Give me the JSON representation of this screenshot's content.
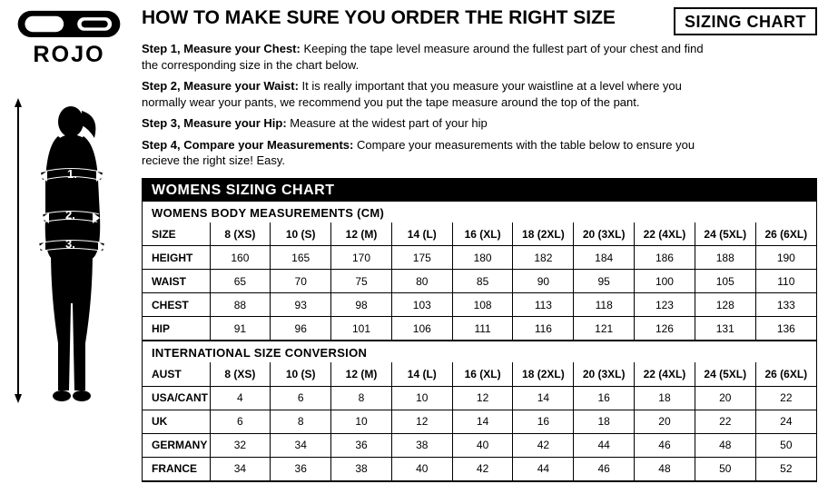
{
  "brand": "ROJO",
  "title": "HOW  TO MAKE SURE YOU ORDER THE RIGHT SIZE",
  "badge": "SIZING CHART",
  "steps": [
    {
      "bold": "Step 1, Measure your Chest:",
      "text": "  Keeping the tape level measure around the fullest part of your chest and find the corresponding size in the chart below."
    },
    {
      "bold": "Step 2, Measure your Waist:",
      "text": " It is really important that you measure your waistline at a level where you normally wear your pants, we recommend you put the tape measure around the top of the pant."
    },
    {
      "bold": "Step 3, Measure your Hip:",
      "text": " Measure at the widest part of your hip"
    },
    {
      "bold": "Step 4, Compare your Measurements:",
      "text": " Compare your measurements with the table below to ensure you recieve the right size! Easy."
    }
  ],
  "chart_title": "WOMENS SIZING CHART",
  "section_body": {
    "heading": "WOMENS BODY MEASUREMENTS (CM)",
    "size_label": "SIZE",
    "sizes": [
      "8 (XS)",
      "10 (S)",
      "12 (M)",
      "14 (L)",
      "16 (XL)",
      "18 (2XL)",
      "20 (3XL)",
      "22 (4XL)",
      "24 (5XL)",
      "26 (6XL)"
    ],
    "rows": [
      {
        "label": "HEIGHT",
        "values": [
          "160",
          "165",
          "170",
          "175",
          "180",
          "182",
          "184",
          "186",
          "188",
          "190"
        ]
      },
      {
        "label": "WAIST",
        "values": [
          "65",
          "70",
          "75",
          "80",
          "85",
          "90",
          "95",
          "100",
          "105",
          "110"
        ]
      },
      {
        "label": "CHEST",
        "values": [
          "88",
          "93",
          "98",
          "103",
          "108",
          "113",
          "118",
          "123",
          "128",
          "133"
        ]
      },
      {
        "label": "HIP",
        "values": [
          "91",
          "96",
          "101",
          "106",
          "111",
          "116",
          "121",
          "126",
          "131",
          "136"
        ]
      }
    ]
  },
  "section_intl": {
    "heading": "INTERNATIONAL SIZE CONVERSION",
    "size_label": "AUST",
    "sizes": [
      "8 (XS)",
      "10 (S)",
      "12 (M)",
      "14 (L)",
      "16 (XL)",
      "18 (2XL)",
      "20 (3XL)",
      "22 (4XL)",
      "24 (5XL)",
      "26 (6XL)"
    ],
    "rows": [
      {
        "label": "USA/CANT",
        "values": [
          "4",
          "6",
          "8",
          "10",
          "12",
          "14",
          "16",
          "18",
          "20",
          "22"
        ]
      },
      {
        "label": "UK",
        "values": [
          "6",
          "8",
          "10",
          "12",
          "14",
          "16",
          "18",
          "20",
          "22",
          "24"
        ]
      },
      {
        "label": "GERMANY",
        "values": [
          "32",
          "34",
          "36",
          "38",
          "40",
          "42",
          "44",
          "46",
          "48",
          "50"
        ]
      },
      {
        "label": "FRANCE",
        "values": [
          "34",
          "36",
          "38",
          "40",
          "42",
          "44",
          "46",
          "48",
          "50",
          "52"
        ]
      }
    ]
  },
  "silhouette_labels": [
    "1.",
    "2.",
    "3."
  ],
  "colors": {
    "text": "#000000",
    "bg": "#ffffff",
    "bar": "#000000"
  }
}
